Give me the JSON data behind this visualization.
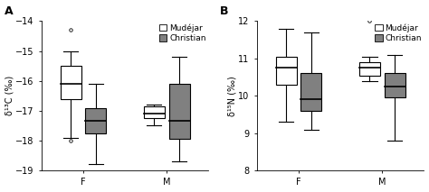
{
  "panel_A": {
    "title": "A",
    "ylabel": "δ¹³C (‰)",
    "ylim": [
      -19,
      -14
    ],
    "yticks": [
      -19,
      -18,
      -17,
      -16,
      -15,
      -14
    ],
    "boxes": {
      "Mudejar": {
        "F": {
          "med": -16.1,
          "q1": -16.6,
          "q3": -15.5,
          "whishi": -15.0,
          "whislo": -17.9,
          "fliers": [
            -14.3,
            -18.0
          ]
        },
        "M": {
          "med": -17.1,
          "q1": -17.25,
          "q3": -16.85,
          "whishi": -16.8,
          "whislo": -17.5,
          "fliers": []
        }
      },
      "Christian": {
        "F": {
          "med": -17.35,
          "q1": -17.75,
          "q3": -16.9,
          "whishi": -16.1,
          "whislo": -18.8,
          "fliers": []
        },
        "M": {
          "med": -17.35,
          "q1": -17.95,
          "q3": -16.1,
          "whishi": -15.2,
          "whislo": -18.7,
          "fliers": []
        }
      }
    }
  },
  "panel_B": {
    "title": "B",
    "ylabel": "δ¹⁵N (‰)",
    "ylim": [
      8,
      12
    ],
    "yticks": [
      8,
      9,
      10,
      11,
      12
    ],
    "boxes": {
      "Mudejar": {
        "F": {
          "med": 10.75,
          "q1": 10.3,
          "q3": 11.05,
          "whishi": 11.8,
          "whislo": 9.3,
          "fliers": []
        },
        "M": {
          "med": 10.75,
          "q1": 10.55,
          "q3": 10.9,
          "whishi": 11.05,
          "whislo": 10.4,
          "fliers": [
            12.0
          ]
        }
      },
      "Christian": {
        "F": {
          "med": 9.9,
          "q1": 9.6,
          "q3": 10.6,
          "whishi": 11.7,
          "whislo": 9.1,
          "fliers": []
        },
        "M": {
          "med": 10.25,
          "q1": 9.95,
          "q3": 10.6,
          "whishi": 11.1,
          "whislo": 8.8,
          "fliers": []
        }
      }
    }
  },
  "colors": {
    "Mudejar": "#ffffff",
    "Christian": "#808080"
  },
  "legend_labels": [
    "Mudéjar",
    "Christian"
  ],
  "groups": [
    "F",
    "M"
  ],
  "group_positions": [
    1,
    2
  ],
  "offsets": [
    -0.15,
    0.15
  ],
  "style_order": [
    "Mudejar",
    "Christian"
  ],
  "box_width": 0.25,
  "cap_ratio": 0.35,
  "linecolor": "#000000",
  "linewidth": 0.8,
  "median_linewidth": 1.2,
  "flier_size": 2.5,
  "fontsize": 7,
  "legend_fontsize": 6.5,
  "panel_label_fontsize": 9
}
